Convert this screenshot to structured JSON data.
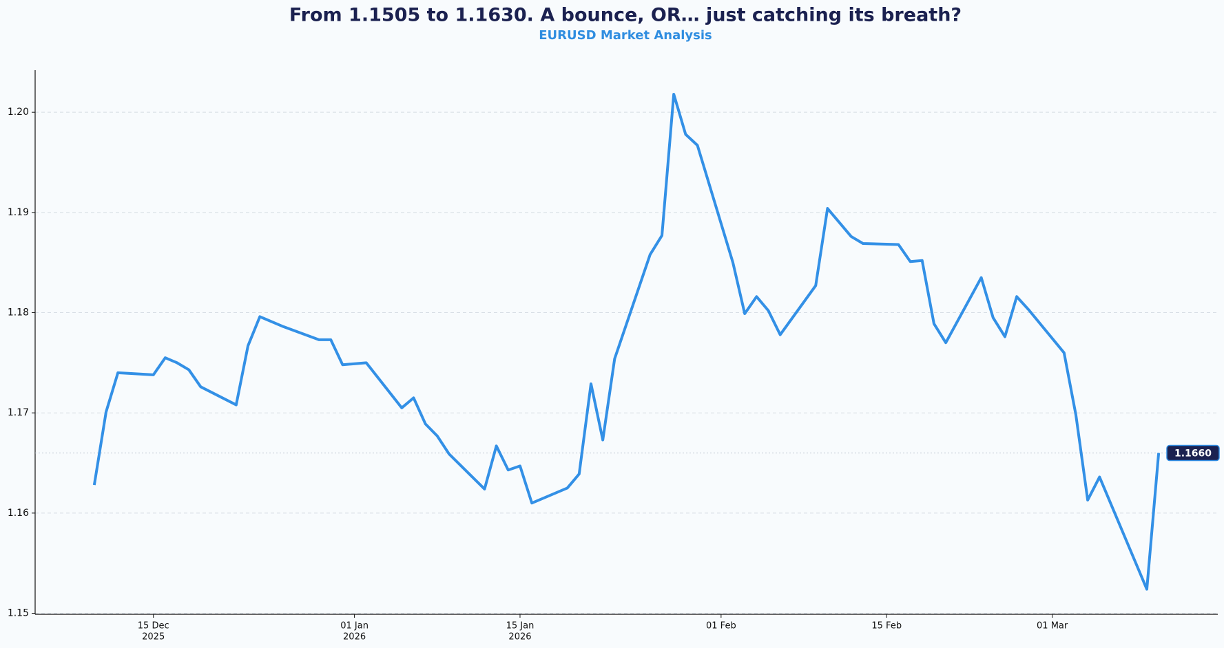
{
  "chart_data": {
    "type": "line",
    "title": "From 1.1505 to 1.1630. A bounce, OR… just catching its breath?",
    "subtitle": "EURUSD Market Analysis",
    "x": [
      "2025-12-10",
      "2025-12-11",
      "2025-12-12",
      "2025-12-15",
      "2025-12-16",
      "2025-12-17",
      "2025-12-18",
      "2025-12-19",
      "2025-12-22",
      "2025-12-23",
      "2025-12-24",
      "2025-12-26",
      "2025-12-29",
      "2025-12-30",
      "2025-12-31",
      "2026-01-02",
      "2026-01-05",
      "2026-01-06",
      "2026-01-07",
      "2026-01-08",
      "2026-01-09",
      "2026-01-12",
      "2026-01-13",
      "2026-01-14",
      "2026-01-15",
      "2026-01-16",
      "2026-01-19",
      "2026-01-20",
      "2026-01-21",
      "2026-01-22",
      "2026-01-23",
      "2026-01-26",
      "2026-01-27",
      "2026-01-28",
      "2026-01-29",
      "2026-01-30",
      "2026-02-02",
      "2026-02-03",
      "2026-02-04",
      "2026-02-05",
      "2026-02-06",
      "2026-02-09",
      "2026-02-10",
      "2026-02-12",
      "2026-02-13",
      "2026-02-16",
      "2026-02-17",
      "2026-02-18",
      "2026-02-19",
      "2026-02-20",
      "2026-02-23",
      "2026-02-24",
      "2026-02-25",
      "2026-02-26",
      "2026-02-27",
      "2026-03-02",
      "2026-03-03",
      "2026-03-04",
      "2026-03-05",
      "2026-03-09",
      "2026-03-10"
    ],
    "series": [
      {
        "name": "EURUSD",
        "color": "#3390e6",
        "values": [
          1.1628,
          1.1701,
          1.174,
          1.1738,
          1.1755,
          1.175,
          1.1743,
          1.1726,
          1.1708,
          1.1767,
          1.1796,
          1.1786,
          1.1773,
          1.1773,
          1.1748,
          1.175,
          1.1705,
          1.1715,
          1.1689,
          1.1677,
          1.1659,
          1.1624,
          1.1667,
          1.1643,
          1.1647,
          1.161,
          1.1625,
          1.1639,
          1.1729,
          1.1673,
          1.1754,
          1.1858,
          1.1877,
          1.2018,
          1.1978,
          1.1967,
          1.185,
          1.1799,
          1.1816,
          1.1802,
          1.1778,
          1.1827,
          1.1904,
          1.1876,
          1.1869,
          1.1868,
          1.1851,
          1.1852,
          1.1789,
          1.177,
          1.1835,
          1.1795,
          1.1776,
          1.1816,
          1.1803,
          1.176,
          1.1698,
          1.1613,
          1.1636,
          1.1524,
          1.166
        ]
      }
    ],
    "last_price": {
      "value": 1.166,
      "label": "1.1660"
    },
    "xlim": [
      "2025-12-05",
      "2026-03-15"
    ],
    "xticks": [
      {
        "value": "2025-12-15",
        "label": [
          "15 Dec",
          "2025"
        ]
      },
      {
        "value": "2026-01-01",
        "label": [
          "01 Jan",
          "2026"
        ]
      },
      {
        "value": "2026-01-15",
        "label": [
          "15 Jan",
          "2026"
        ]
      },
      {
        "value": "2026-02-01",
        "label": [
          "01 Feb"
        ]
      },
      {
        "value": "2026-02-15",
        "label": [
          "15 Feb"
        ]
      },
      {
        "value": "2026-03-01",
        "label": [
          "01 Mar"
        ]
      }
    ],
    "ylim": [
      1.1499,
      1.2042
    ],
    "yticks": [
      1.15,
      1.16,
      1.17,
      1.18,
      1.19,
      {
        "value": 1.2,
        "label": "1.20"
      }
    ],
    "grid": true
  }
}
